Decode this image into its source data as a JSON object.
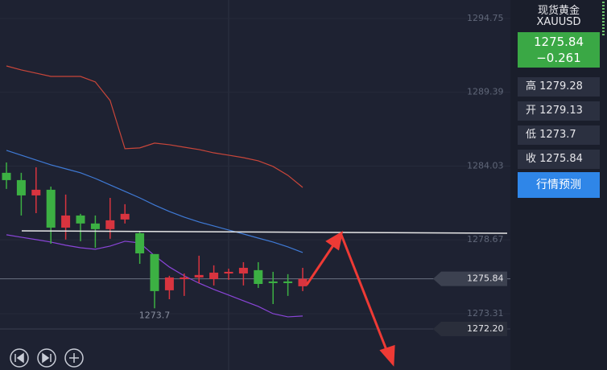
{
  "chart_data": {
    "type": "candlestick",
    "ylim": [
      1269.22,
      1296.09
    ],
    "yticks": [
      1294.75,
      1289.39,
      1284.03,
      1278.67,
      1273.31
    ],
    "up_color": "#d8343f",
    "down_color": "#3cb043",
    "candles": [
      {
        "open": 1283.54,
        "high": 1284.29,
        "low": 1282.37,
        "close": 1283.01
      },
      {
        "open": 1283.01,
        "high": 1283.54,
        "low": 1280.44,
        "close": 1281.9
      },
      {
        "open": 1281.9,
        "high": 1283.94,
        "low": 1280.61,
        "close": 1282.31
      },
      {
        "open": 1282.31,
        "high": 1282.54,
        "low": 1278.39,
        "close": 1279.56
      },
      {
        "open": 1279.56,
        "high": 1281.96,
        "low": 1278.69,
        "close": 1280.44
      },
      {
        "open": 1280.44,
        "high": 1280.56,
        "low": 1278.57,
        "close": 1279.86
      },
      {
        "open": 1279.86,
        "high": 1280.44,
        "low": 1278.1,
        "close": 1279.45
      },
      {
        "open": 1279.45,
        "high": 1281.72,
        "low": 1278.75,
        "close": 1280.09
      },
      {
        "open": 1280.15,
        "high": 1281.26,
        "low": 1279.86,
        "close": 1280.56
      },
      {
        "open": 1279.15,
        "high": 1279.33,
        "low": 1276.93,
        "close": 1277.69
      },
      {
        "open": 1277.64,
        "high": 1277.64,
        "low": 1273.7,
        "close": 1274.95
      },
      {
        "open": 1275.01,
        "high": 1276.06,
        "low": 1274.36,
        "close": 1275.94
      },
      {
        "open": 1275.82,
        "high": 1276.23,
        "low": 1274.6,
        "close": 1275.94
      },
      {
        "open": 1275.94,
        "high": 1277.52,
        "low": 1275.53,
        "close": 1276.12
      },
      {
        "open": 1275.82,
        "high": 1276.82,
        "low": 1275.36,
        "close": 1276.29
      },
      {
        "open": 1276.23,
        "high": 1276.58,
        "low": 1275.77,
        "close": 1276.35
      },
      {
        "open": 1276.23,
        "high": 1277.05,
        "low": 1275.36,
        "close": 1276.64
      },
      {
        "open": 1276.47,
        "high": 1277.05,
        "low": 1275.18,
        "close": 1275.47
      },
      {
        "open": 1275.65,
        "high": 1276.35,
        "low": 1274.01,
        "close": 1275.53
      },
      {
        "open": 1275.65,
        "high": 1276.18,
        "low": 1274.6,
        "close": 1275.53
      },
      {
        "open": 1275.3,
        "high": 1276.64,
        "low": 1274.95,
        "close": 1275.84
      }
    ],
    "series": [
      {
        "color": "#c9463a",
        "values": [
          1291.3,
          1291.01,
          1290.78,
          1290.54,
          1290.54,
          1290.54,
          1290.14,
          1288.79,
          1285.29,
          1285.35,
          1285.7,
          1285.58,
          1285.4,
          1285.23,
          1284.99,
          1284.82,
          1284.64,
          1284.41,
          1284.0,
          1283.36,
          1282.48
        ]
      },
      {
        "color": "#3f7ad6",
        "values": [
          1285.17,
          1284.82,
          1284.47,
          1284.12,
          1283.83,
          1283.54,
          1283.13,
          1282.66,
          1282.19,
          1281.72,
          1281.2,
          1280.73,
          1280.32,
          1279.97,
          1279.68,
          1279.39,
          1279.1,
          1278.8,
          1278.51,
          1278.16,
          1277.75
        ]
      },
      {
        "color": "#8a45d8",
        "values": [
          1279.04,
          1278.86,
          1278.69,
          1278.51,
          1278.28,
          1278.1,
          1277.99,
          1278.22,
          1278.57,
          1278.45,
          1277.52,
          1276.7,
          1276.06,
          1275.53,
          1275.07,
          1274.66,
          1274.25,
          1273.84,
          1273.31,
          1273.08,
          1273.14
        ]
      }
    ],
    "annotation": "1273.7",
    "price_markers": [
      1275.84,
      {
        "value": 1272.2,
        "label": "1272.20"
      }
    ]
  },
  "quote": {
    "name": "现货黄金",
    "symbol": "XAUUSD",
    "price": "1275.84",
    "change": "−0.261",
    "stats": [
      {
        "label": "高",
        "value": "1279.28"
      },
      {
        "label": "开",
        "value": "1279.13"
      },
      {
        "label": "低",
        "value": "1273.7"
      },
      {
        "label": "收",
        "value": "1275.84"
      }
    ],
    "button": "行情预测"
  }
}
